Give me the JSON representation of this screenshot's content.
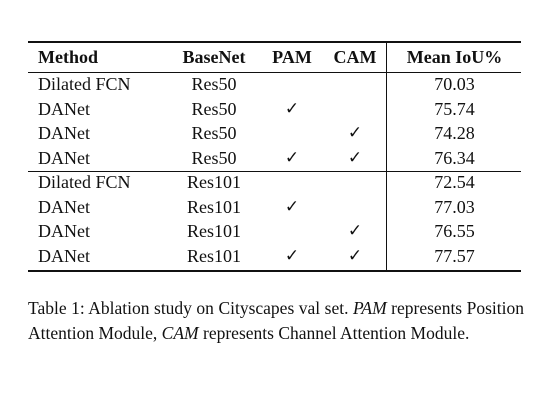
{
  "table": {
    "columns": [
      "Method",
      "BaseNet",
      "PAM",
      "CAM",
      "Mean IoU%"
    ],
    "check_mark": "✓",
    "rows": [
      {
        "method": "Dilated FCN",
        "basenet": "Res50",
        "pam": "",
        "cam": "",
        "miou": "70.03"
      },
      {
        "method": "DANet",
        "basenet": "Res50",
        "pam": "✓",
        "cam": "",
        "miou": "75.74"
      },
      {
        "method": "DANet",
        "basenet": "Res50",
        "pam": "",
        "cam": "✓",
        "miou": "74.28"
      },
      {
        "method": "DANet",
        "basenet": "Res50",
        "pam": "✓",
        "cam": "✓",
        "miou": "76.34"
      },
      {
        "method": "Dilated FCN",
        "basenet": "Res101",
        "pam": "",
        "cam": "",
        "miou": "72.54"
      },
      {
        "method": "DANet",
        "basenet": "Res101",
        "pam": "✓",
        "cam": "",
        "miou": "77.03"
      },
      {
        "method": "DANet",
        "basenet": "Res101",
        "pam": "",
        "cam": "✓",
        "miou": "76.55"
      },
      {
        "method": "DANet",
        "basenet": "Res101",
        "pam": "✓",
        "cam": "✓",
        "miou": "77.57"
      }
    ]
  },
  "caption": {
    "label": "Table 1:",
    "part1": " Ablation study on Cityscapes val set. ",
    "pam_abbr": "PAM",
    "part2": " represents Position Attention Module, ",
    "cam_abbr": "CAM",
    "part3": " represents Channel Attention Module."
  }
}
